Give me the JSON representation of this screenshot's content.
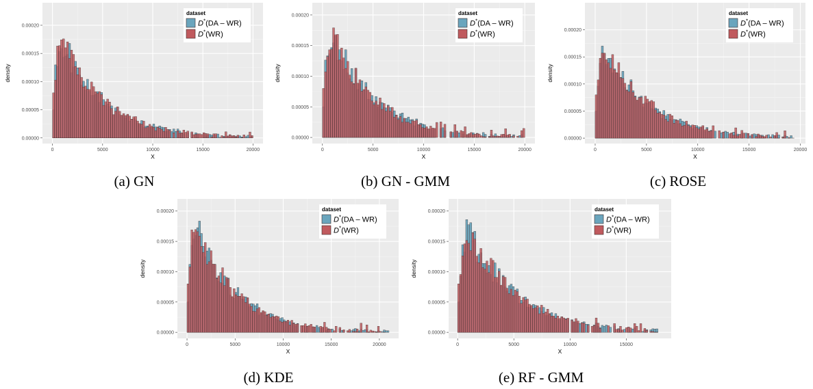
{
  "colors": {
    "panel_bg": "#ebebeb",
    "grid_major": "#ffffff",
    "series_blue": "#6aa5bd",
    "series_red": "#c05a5e",
    "bar_outline": "#3a2a2a"
  },
  "chart_data": [
    {
      "type": "bar",
      "subtype": "histogram",
      "caption": "(a) GN",
      "xlabel": "X",
      "ylabel": "density",
      "xlim": [
        -1000,
        21000
      ],
      "ylim": [
        -1e-05,
        0.00024
      ],
      "x_ticks": [
        "0",
        "5000",
        "10000",
        "15000",
        "20000"
      ],
      "x_tick_values": [
        0,
        5000,
        10000,
        15000,
        20000
      ],
      "y_ticks": [
        "0.00000",
        "0.00005",
        "0.00010",
        "0.00015",
        "0.00020"
      ],
      "y_tick_values": [
        0,
        5e-05,
        0.0001,
        0.00015,
        0.0002
      ],
      "bin_width": 200,
      "bin_start": 0,
      "x_max": 20000,
      "seed": 11,
      "peak": 0.000205,
      "legend": {
        "title": "dataset",
        "placement": "top-right",
        "entries": [
          {
            "sup": "D",
            "star": "*",
            "label": "(DA – WR)",
            "color": "#6aa5bd"
          },
          {
            "sup": "D",
            "star": "*",
            "label": "(WR)",
            "color": "#c05a5e"
          }
        ]
      },
      "series": [
        {
          "name": "D*(DA – WR)"
        },
        {
          "name": "D*(WR)"
        }
      ]
    },
    {
      "type": "bar",
      "subtype": "histogram",
      "caption": "(b) GN - GMM",
      "xlabel": "X",
      "ylabel": "density",
      "xlim": [
        -1000,
        21000
      ],
      "ylim": [
        -1e-05,
        0.00022
      ],
      "x_ticks": [
        "0",
        "5000",
        "10000",
        "15000",
        "20000"
      ],
      "x_tick_values": [
        0,
        5000,
        10000,
        15000,
        20000
      ],
      "y_ticks": [
        "0.00000",
        "0.00005",
        "0.00010",
        "0.00015",
        "0.00020"
      ],
      "y_tick_values": [
        0,
        5e-05,
        0.0001,
        0.00015,
        0.0002
      ],
      "bin_width": 200,
      "bin_start": 0,
      "x_max": 20000,
      "seed": 23,
      "peak": 0.0002,
      "legend": {
        "title": "dataset",
        "placement": "top-right",
        "entries": [
          {
            "sup": "D",
            "star": "*",
            "label": "(DA – WR)",
            "color": "#6aa5bd"
          },
          {
            "sup": "D",
            "star": "*",
            "label": "(WR)",
            "color": "#c05a5e"
          }
        ]
      },
      "series": [
        {
          "name": "D*(DA – WR)"
        },
        {
          "name": "D*(WR)"
        }
      ]
    },
    {
      "type": "bar",
      "subtype": "histogram",
      "caption": "(c) ROSE",
      "xlabel": "X",
      "ylabel": "density",
      "xlim": [
        -1000,
        20500
      ],
      "ylim": [
        -1e-05,
        0.00025
      ],
      "x_ticks": [
        "0",
        "5000",
        "10000",
        "15000",
        "20000"
      ],
      "x_tick_values": [
        0,
        5000,
        10000,
        15000,
        20000
      ],
      "y_ticks": [
        "0.00000",
        "0.00005",
        "0.00010",
        "0.00015",
        "0.00020"
      ],
      "y_tick_values": [
        0,
        5e-05,
        0.0001,
        0.00015,
        0.0002
      ],
      "bin_width": 200,
      "bin_start": 0,
      "x_max": 19500,
      "seed": 37,
      "peak": 0.0002,
      "legend": {
        "title": "dataset",
        "placement": "top-right",
        "entries": [
          {
            "sup": "D",
            "star": "*",
            "label": "(DA – WR)",
            "color": "#6aa5bd"
          },
          {
            "sup": "D",
            "star": "*",
            "label": "(WR)",
            "color": "#c05a5e"
          }
        ]
      },
      "series": [
        {
          "name": "D*(DA – WR)"
        },
        {
          "name": "D*(WR)"
        }
      ]
    },
    {
      "type": "bar",
      "subtype": "histogram",
      "caption": "(d) KDE",
      "xlabel": "X",
      "ylabel": "density",
      "xlim": [
        -1000,
        22000
      ],
      "ylim": [
        -1e-05,
        0.00022
      ],
      "x_ticks": [
        "0",
        "5000",
        "10000",
        "15000",
        "20000"
      ],
      "x_tick_values": [
        0,
        5000,
        10000,
        15000,
        20000
      ],
      "y_ticks": [
        "0.00000",
        "0.00005",
        "0.00010",
        "0.00015",
        "0.00020"
      ],
      "y_tick_values": [
        0,
        5e-05,
        0.0001,
        0.00015,
        0.0002
      ],
      "bin_width": 200,
      "bin_start": 0,
      "x_max": 21000,
      "seed": 51,
      "peak": 0.0002,
      "legend": {
        "title": "dataset",
        "placement": "top-right",
        "entries": [
          {
            "sup": "D",
            "star": "*",
            "label": "(DA – WR)",
            "color": "#6aa5bd"
          },
          {
            "sup": "D",
            "star": "*",
            "label": "(WR)",
            "color": "#c05a5e"
          }
        ]
      },
      "series": [
        {
          "name": "D*(DA – WR)"
        },
        {
          "name": "D*(WR)"
        }
      ]
    },
    {
      "type": "bar",
      "subtype": "histogram",
      "caption": "(e) RF - GMM",
      "xlabel": "X",
      "ylabel": "density",
      "xlim": [
        -800,
        19000
      ],
      "ylim": [
        -1e-05,
        0.00022
      ],
      "x_ticks": [
        "0",
        "5000",
        "10000",
        "15000"
      ],
      "x_tick_values": [
        0,
        5000,
        10000,
        15000
      ],
      "y_ticks": [
        "0.00000",
        "0.00005",
        "0.00010",
        "0.00015",
        "0.00020"
      ],
      "y_tick_values": [
        0,
        5e-05,
        0.0001,
        0.00015,
        0.0002
      ],
      "bin_width": 180,
      "bin_start": 0,
      "x_max": 18000,
      "seed": 67,
      "peak": 0.0002,
      "legend": {
        "title": "dataset",
        "placement": "top-right",
        "entries": [
          {
            "sup": "D",
            "star": "*",
            "label": "(DA – WR)",
            "color": "#6aa5bd"
          },
          {
            "sup": "D",
            "star": "*",
            "label": "(WR)",
            "color": "#c05a5e"
          }
        ]
      },
      "series": [
        {
          "name": "D*(DA – WR)"
        },
        {
          "name": "D*(WR)"
        }
      ]
    }
  ]
}
